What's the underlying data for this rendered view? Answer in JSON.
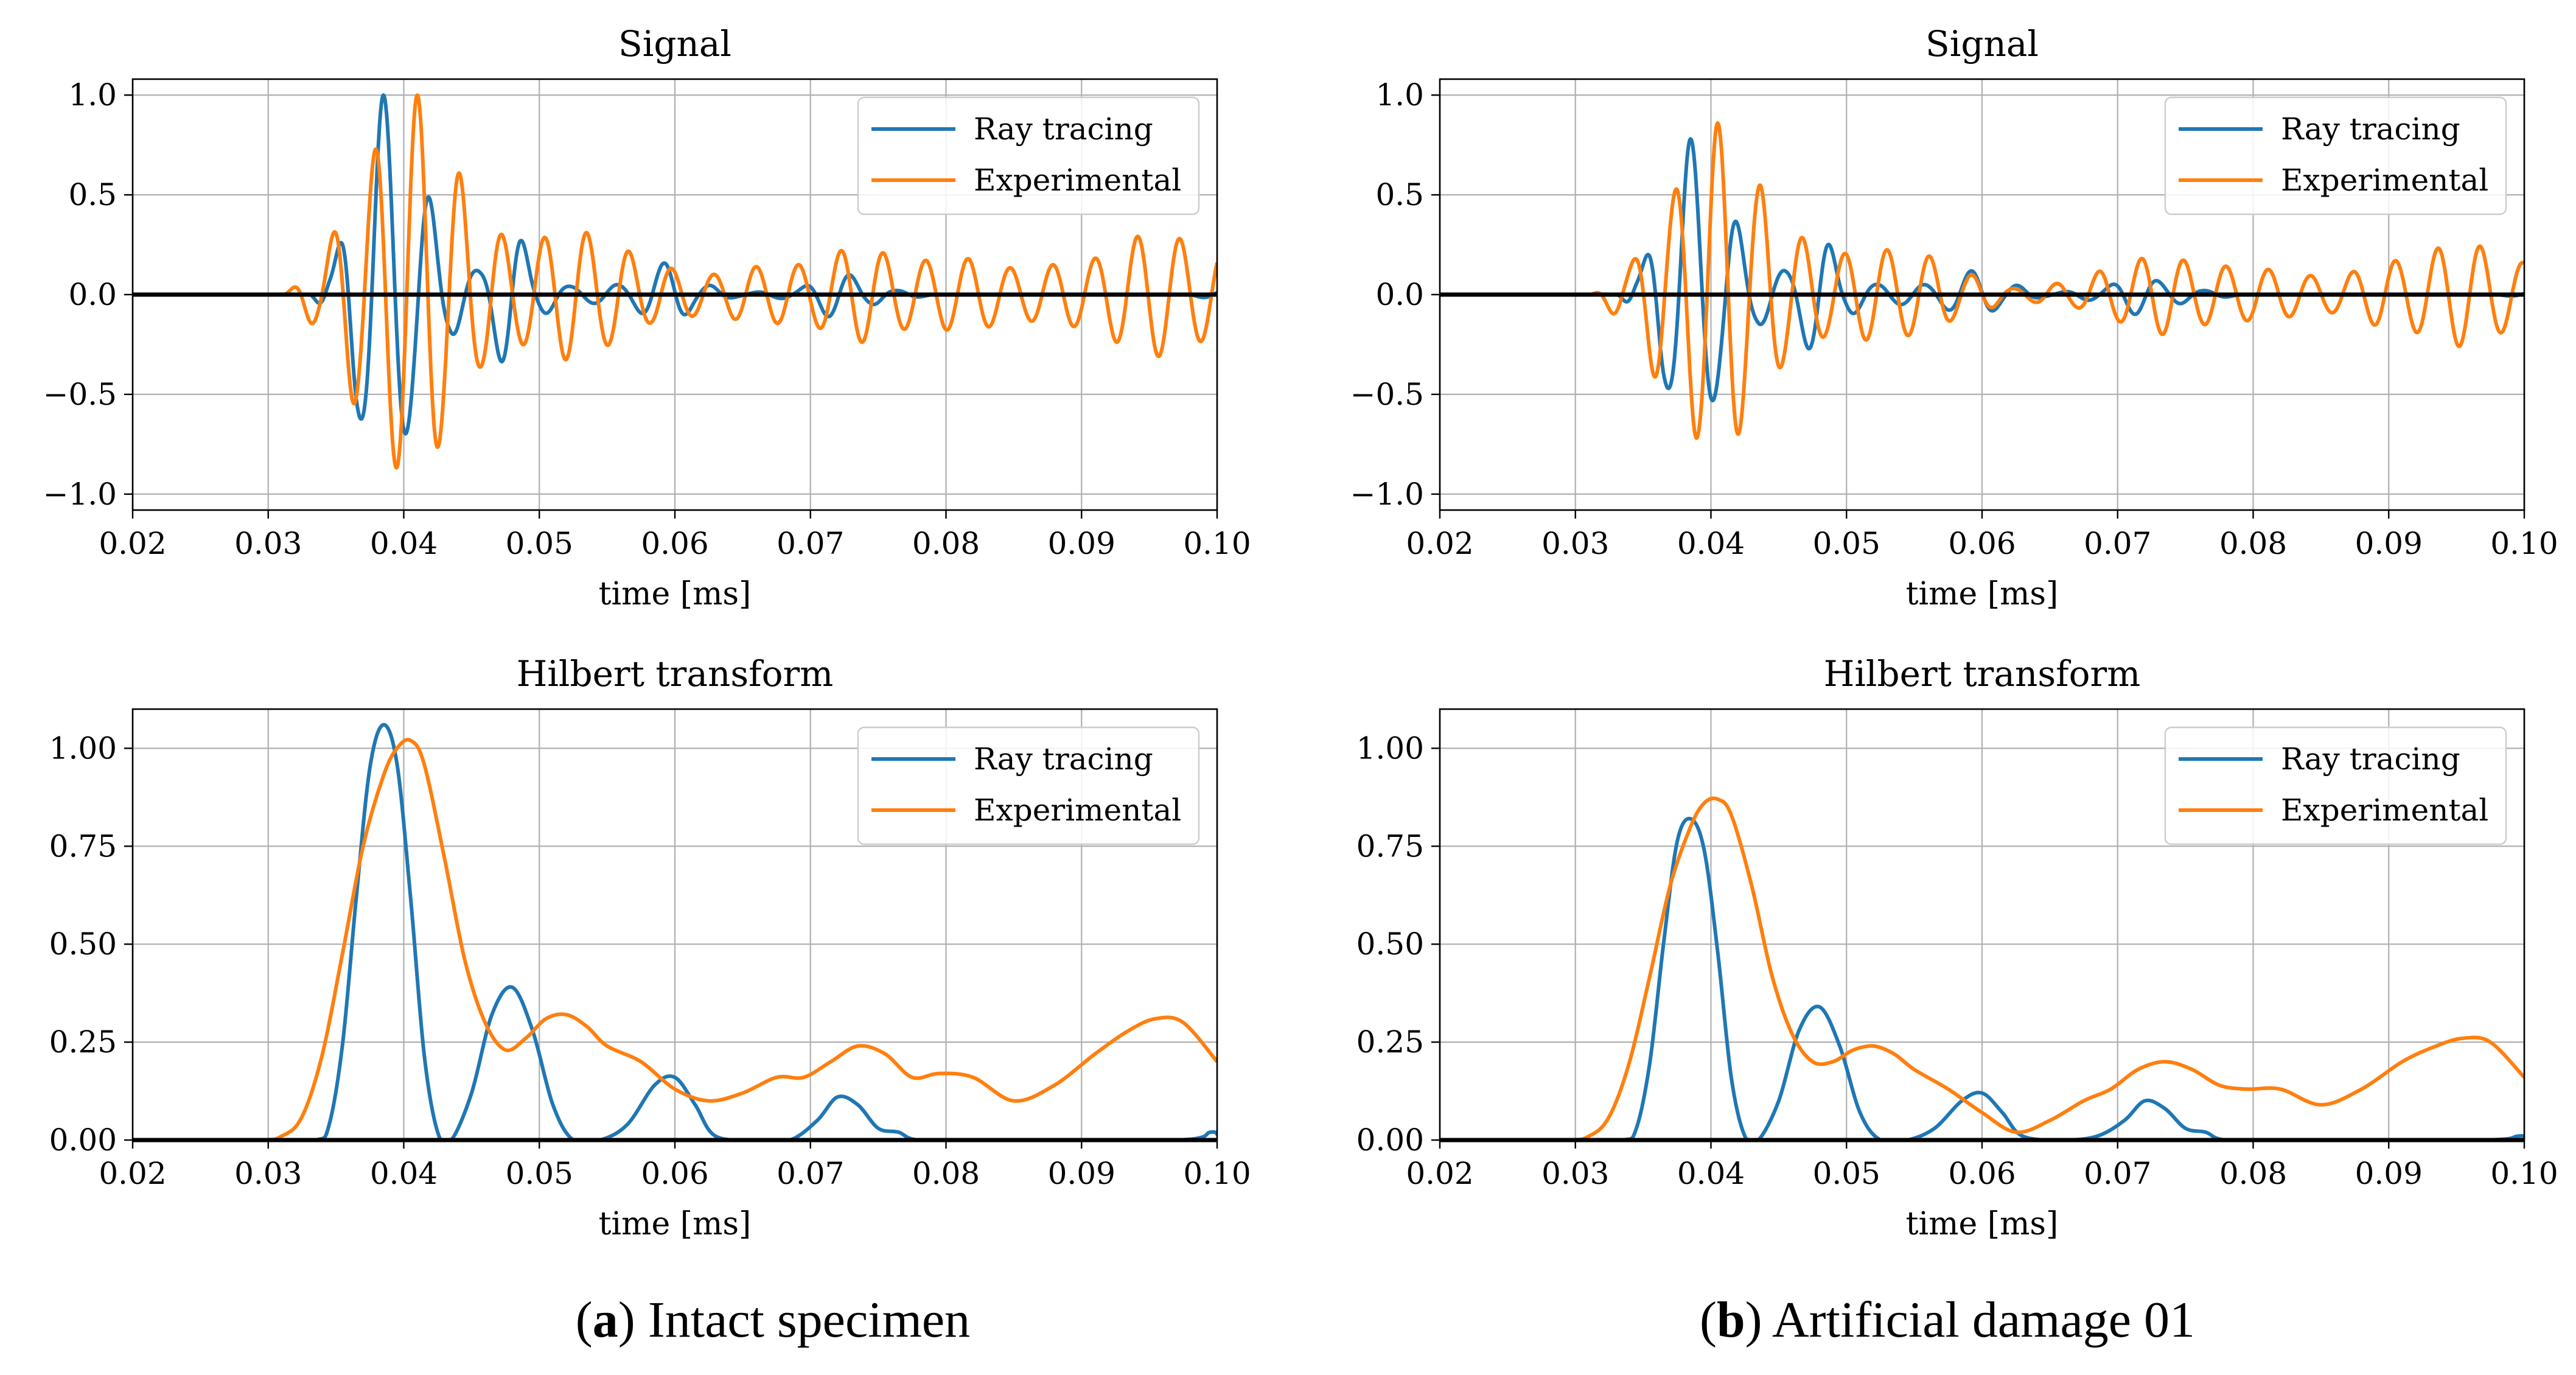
{
  "colors": {
    "ray": "#1f77b4",
    "exp": "#ff7f0e",
    "grid": "#b0b0b0",
    "zero": "#000000"
  },
  "captions": [
    {
      "letter": "a",
      "text": ") Intact specimen",
      "open": "("
    },
    {
      "letter": "b",
      "text": ") Artificial damage 01",
      "open": "("
    }
  ],
  "chart_data": [
    {
      "id": "a-signal",
      "type": "line",
      "title": "Signal",
      "xlabel": "time [ms]",
      "ylabel": "",
      "xlim": [
        0.02,
        0.1
      ],
      "ylim": [
        -1.08,
        1.08
      ],
      "xticks": [
        0.02,
        0.03,
        0.04,
        0.05,
        0.06,
        0.07,
        0.08,
        0.09,
        0.1
      ],
      "xticklabels": [
        "0.02",
        "0.03",
        "0.04",
        "0.05",
        "0.06",
        "0.07",
        "0.08",
        "0.09",
        "0.10"
      ],
      "yticks": [
        -1.0,
        -0.5,
        0.0,
        0.5,
        1.0
      ],
      "yticklabels": [
        "−1.0",
        "−0.5",
        "0.0",
        "0.5",
        "1.0"
      ],
      "zero_line": true,
      "legend": "top-right",
      "grid": true,
      "series": [
        {
          "name": "Ray_tracing",
          "label": "Ray tracing",
          "color": "#1f77b4",
          "kind": "osc",
          "freq": 290,
          "env": [
            [
              0.02,
              0
            ],
            [
              0.033,
              0
            ],
            [
              0.0345,
              0.12
            ],
            [
              0.0365,
              0.6
            ],
            [
              0.0385,
              1.0
            ],
            [
              0.041,
              0.6
            ],
            [
              0.0435,
              0.2
            ],
            [
              0.0455,
              0.12
            ],
            [
              0.0478,
              0.38
            ],
            [
              0.05,
              0.1
            ],
            [
              0.0525,
              0.04
            ],
            [
              0.056,
              0.05
            ],
            [
              0.0595,
              0.16
            ],
            [
              0.062,
              0.05
            ],
            [
              0.065,
              0.01
            ],
            [
              0.0685,
              0.02
            ],
            [
              0.072,
              0.12
            ],
            [
              0.0745,
              0.05
            ],
            [
              0.0765,
              0.02
            ],
            [
              0.08,
              0
            ],
            [
              0.097,
              0
            ],
            [
              0.1,
              0.02
            ]
          ],
          "phase_at": 0.0385,
          "phase_val": 1.0
        },
        {
          "name": "Experimental",
          "label": "Experimental",
          "color": "#ff7f0e",
          "kind": "osc",
          "freq": 320,
          "env": [
            [
              0.02,
              0
            ],
            [
              0.031,
              0
            ],
            [
              0.0335,
              0.15
            ],
            [
              0.0365,
              0.55
            ],
            [
              0.039,
              0.85
            ],
            [
              0.041,
              1.0
            ],
            [
              0.0435,
              0.65
            ],
            [
              0.046,
              0.35
            ],
            [
              0.0485,
              0.25
            ],
            [
              0.0525,
              0.33
            ],
            [
              0.0555,
              0.25
            ],
            [
              0.0585,
              0.14
            ],
            [
              0.0625,
              0.1
            ],
            [
              0.066,
              0.14
            ],
            [
              0.0695,
              0.15
            ],
            [
              0.0735,
              0.24
            ],
            [
              0.0775,
              0.17
            ],
            [
              0.0815,
              0.18
            ],
            [
              0.0855,
              0.13
            ],
            [
              0.0895,
              0.16
            ],
            [
              0.0955,
              0.31
            ],
            [
              0.1,
              0.22
            ]
          ],
          "phase_at": 0.041,
          "phase_val": 1.0
        }
      ]
    },
    {
      "id": "b-signal",
      "type": "line",
      "title": "Signal",
      "xlabel": "time [ms]",
      "ylabel": "",
      "xlim": [
        0.02,
        0.1
      ],
      "ylim": [
        -1.08,
        1.08
      ],
      "xticks": [
        0.02,
        0.03,
        0.04,
        0.05,
        0.06,
        0.07,
        0.08,
        0.09,
        0.1
      ],
      "xticklabels": [
        "0.02",
        "0.03",
        "0.04",
        "0.05",
        "0.06",
        "0.07",
        "0.08",
        "0.09",
        "0.10"
      ],
      "yticks": [
        -1.0,
        -0.5,
        0.0,
        0.5,
        1.0
      ],
      "yticklabels": [
        "−1.0",
        "−0.5",
        "0.0",
        "0.5",
        "1.0"
      ],
      "zero_line": true,
      "legend": "top-right",
      "grid": true,
      "series": [
        {
          "name": "Ray_tracing",
          "label": "Ray tracing",
          "color": "#1f77b4",
          "kind": "osc",
          "freq": 290,
          "env": [
            [
              0.02,
              0
            ],
            [
              0.033,
              0
            ],
            [
              0.0345,
              0.1
            ],
            [
              0.0365,
              0.45
            ],
            [
              0.0385,
              0.78
            ],
            [
              0.041,
              0.45
            ],
            [
              0.0435,
              0.15
            ],
            [
              0.0455,
              0.12
            ],
            [
              0.048,
              0.32
            ],
            [
              0.05,
              0.1
            ],
            [
              0.0525,
              0.05
            ],
            [
              0.056,
              0.05
            ],
            [
              0.0595,
              0.12
            ],
            [
              0.062,
              0.05
            ],
            [
              0.065,
              0.01
            ],
            [
              0.0685,
              0.03
            ],
            [
              0.0715,
              0.1
            ],
            [
              0.074,
              0.05
            ],
            [
              0.0765,
              0.02
            ],
            [
              0.08,
              0
            ],
            [
              0.097,
              0
            ],
            [
              0.1,
              0.01
            ]
          ],
          "phase_at": 0.0385,
          "phase_val": 1.0
        },
        {
          "name": "Experimental",
          "label": "Experimental",
          "color": "#ff7f0e",
          "kind": "osc",
          "freq": 320,
          "env": [
            [
              0.02,
              0
            ],
            [
              0.031,
              0
            ],
            [
              0.0335,
              0.12
            ],
            [
              0.0365,
              0.45
            ],
            [
              0.039,
              0.72
            ],
            [
              0.0405,
              0.86
            ],
            [
              0.0435,
              0.55
            ],
            [
              0.046,
              0.3
            ],
            [
              0.049,
              0.2
            ],
            [
              0.052,
              0.23
            ],
            [
              0.0555,
              0.2
            ],
            [
              0.059,
              0.1
            ],
            [
              0.0625,
              0.03
            ],
            [
              0.0665,
              0.06
            ],
            [
              0.0695,
              0.13
            ],
            [
              0.073,
              0.2
            ],
            [
              0.0765,
              0.15
            ],
            [
              0.08,
              0.13
            ],
            [
              0.0855,
              0.09
            ],
            [
              0.0905,
              0.17
            ],
            [
              0.0955,
              0.26
            ],
            [
              0.1,
              0.16
            ]
          ],
          "phase_at": 0.0405,
          "phase_val": 1.0
        }
      ]
    },
    {
      "id": "a-hilbert",
      "type": "line",
      "title": "Hilbert transform",
      "xlabel": "time [ms]",
      "ylabel": "",
      "xlim": [
        0.02,
        0.1
      ],
      "ylim": [
        0.0,
        1.1
      ],
      "xticks": [
        0.02,
        0.03,
        0.04,
        0.05,
        0.06,
        0.07,
        0.08,
        0.09,
        0.1
      ],
      "xticklabels": [
        "0.02",
        "0.03",
        "0.04",
        "0.05",
        "0.06",
        "0.07",
        "0.08",
        "0.09",
        "0.10"
      ],
      "yticks": [
        0.0,
        0.25,
        0.5,
        0.75,
        1.0
      ],
      "yticklabels": [
        "0.00",
        "0.25",
        "0.50",
        "0.75",
        "1.00"
      ],
      "zero_line": true,
      "legend": "top-right",
      "grid": true,
      "series": [
        {
          "name": "Ray_tracing",
          "label": "Ray tracing",
          "color": "#1f77b4",
          "kind": "pts",
          "x": [
            0.02,
            0.03,
            0.0335,
            0.0345,
            0.0355,
            0.0365,
            0.0375,
            0.0385,
            0.0395,
            0.0405,
            0.0415,
            0.0425,
            0.0435,
            0.045,
            0.0465,
            0.048,
            0.0495,
            0.051,
            0.0525,
            0.0545,
            0.0565,
            0.0585,
            0.06,
            0.0615,
            0.063,
            0.066,
            0.0685,
            0.0705,
            0.072,
            0.0735,
            0.075,
            0.0765,
            0.078,
            0.083,
            0.097,
            0.0995,
            0.1
          ],
          "y": [
            0.0,
            0.0,
            0.0,
            0.04,
            0.25,
            0.62,
            0.95,
            1.06,
            0.96,
            0.62,
            0.22,
            0.02,
            0.0,
            0.12,
            0.32,
            0.39,
            0.28,
            0.09,
            0.0,
            0.0,
            0.04,
            0.14,
            0.16,
            0.09,
            0.01,
            0.0,
            0.0,
            0.05,
            0.11,
            0.09,
            0.03,
            0.02,
            0.0,
            0.0,
            0.0,
            0.02,
            0.015
          ]
        },
        {
          "name": "Experimental",
          "label": "Experimental",
          "color": "#ff7f0e",
          "kind": "pts",
          "x": [
            0.02,
            0.029,
            0.031,
            0.0325,
            0.034,
            0.0355,
            0.037,
            0.0385,
            0.0395,
            0.0405,
            0.0415,
            0.043,
            0.0445,
            0.046,
            0.0475,
            0.049,
            0.0505,
            0.052,
            0.0535,
            0.055,
            0.0575,
            0.06,
            0.0625,
            0.065,
            0.0675,
            0.0695,
            0.0715,
            0.0735,
            0.0755,
            0.0775,
            0.0795,
            0.082,
            0.085,
            0.088,
            0.091,
            0.0935,
            0.0955,
            0.0975,
            0.1
          ],
          "y": [
            0.0,
            0.0,
            0.01,
            0.06,
            0.22,
            0.48,
            0.75,
            0.93,
            1.0,
            1.02,
            0.96,
            0.72,
            0.46,
            0.3,
            0.23,
            0.26,
            0.31,
            0.32,
            0.29,
            0.24,
            0.2,
            0.13,
            0.1,
            0.12,
            0.16,
            0.16,
            0.2,
            0.24,
            0.22,
            0.16,
            0.17,
            0.16,
            0.1,
            0.14,
            0.22,
            0.28,
            0.31,
            0.3,
            0.2
          ]
        }
      ]
    },
    {
      "id": "b-hilbert",
      "type": "line",
      "title": "Hilbert transform",
      "xlabel": "time [ms]",
      "ylabel": "",
      "xlim": [
        0.02,
        0.1
      ],
      "ylim": [
        0.0,
        1.1
      ],
      "xticks": [
        0.02,
        0.03,
        0.04,
        0.05,
        0.06,
        0.07,
        0.08,
        0.09,
        0.1
      ],
      "xticklabels": [
        "0.02",
        "0.03",
        "0.04",
        "0.05",
        "0.06",
        "0.07",
        "0.08",
        "0.09",
        "0.10"
      ],
      "yticks": [
        0.0,
        0.25,
        0.5,
        0.75,
        1.0
      ],
      "yticklabels": [
        "0.00",
        "0.25",
        "0.50",
        "0.75",
        "1.00"
      ],
      "zero_line": true,
      "legend": "top-right",
      "grid": true,
      "series": [
        {
          "name": "Ray_tracing",
          "label": "Ray tracing",
          "color": "#1f77b4",
          "kind": "pts",
          "x": [
            0.02,
            0.03,
            0.0335,
            0.0345,
            0.0355,
            0.0365,
            0.0375,
            0.0385,
            0.0395,
            0.0405,
            0.0415,
            0.0425,
            0.0435,
            0.045,
            0.0465,
            0.048,
            0.0495,
            0.051,
            0.0525,
            0.0545,
            0.0565,
            0.0585,
            0.06,
            0.0615,
            0.063,
            0.066,
            0.0685,
            0.0705,
            0.072,
            0.0735,
            0.075,
            0.0765,
            0.078,
            0.083,
            0.097,
            0.0995,
            0.1
          ],
          "y": [
            0.0,
            0.0,
            0.0,
            0.03,
            0.2,
            0.5,
            0.76,
            0.82,
            0.74,
            0.48,
            0.16,
            0.01,
            0.0,
            0.1,
            0.28,
            0.34,
            0.24,
            0.07,
            0.0,
            0.0,
            0.03,
            0.1,
            0.12,
            0.07,
            0.01,
            0.0,
            0.01,
            0.05,
            0.1,
            0.08,
            0.03,
            0.02,
            0.0,
            0.0,
            0.0,
            0.01,
            0.01
          ]
        },
        {
          "name": "Experimental",
          "label": "Experimental",
          "color": "#ff7f0e",
          "kind": "pts",
          "x": [
            0.02,
            0.029,
            0.031,
            0.0325,
            0.034,
            0.0355,
            0.037,
            0.0385,
            0.0395,
            0.0405,
            0.0415,
            0.043,
            0.0445,
            0.046,
            0.0475,
            0.049,
            0.0505,
            0.052,
            0.0535,
            0.055,
            0.0575,
            0.06,
            0.0625,
            0.065,
            0.0675,
            0.0695,
            0.0715,
            0.0735,
            0.0755,
            0.0775,
            0.0795,
            0.082,
            0.085,
            0.088,
            0.091,
            0.0935,
            0.0955,
            0.0975,
            0.1
          ],
          "y": [
            0.0,
            0.0,
            0.01,
            0.06,
            0.2,
            0.42,
            0.65,
            0.8,
            0.86,
            0.87,
            0.83,
            0.65,
            0.42,
            0.27,
            0.2,
            0.2,
            0.23,
            0.24,
            0.22,
            0.18,
            0.13,
            0.07,
            0.02,
            0.05,
            0.1,
            0.13,
            0.18,
            0.2,
            0.18,
            0.14,
            0.13,
            0.13,
            0.09,
            0.13,
            0.2,
            0.24,
            0.26,
            0.25,
            0.16
          ]
        }
      ]
    }
  ]
}
